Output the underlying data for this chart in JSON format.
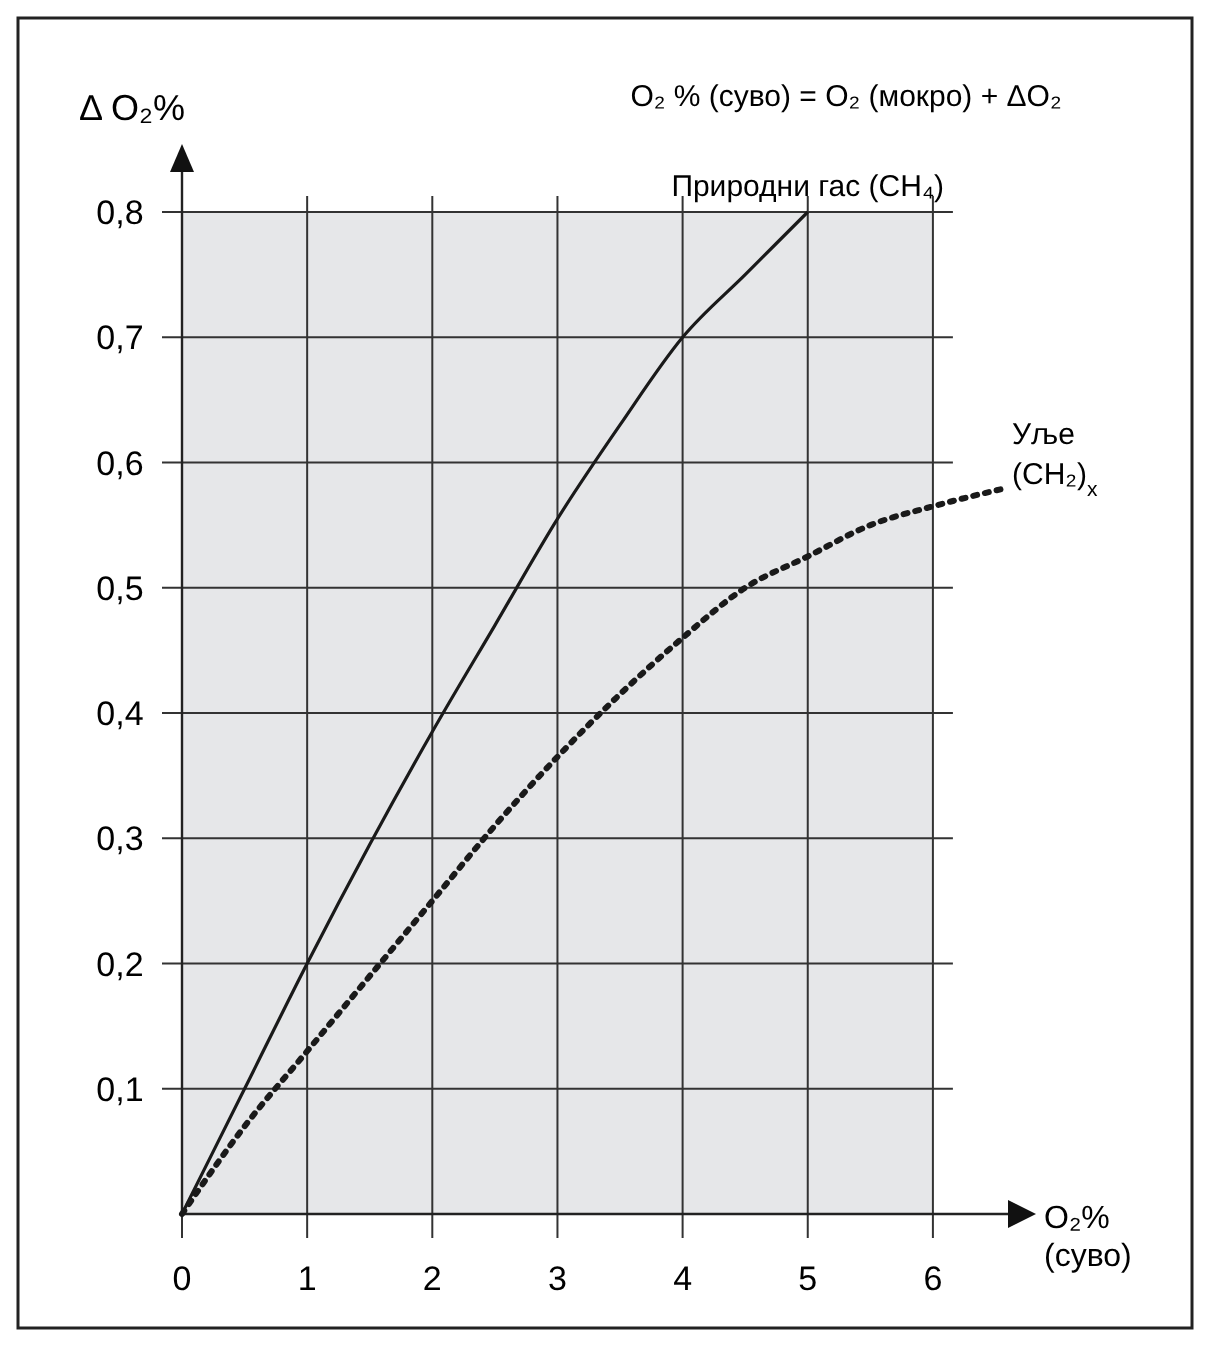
{
  "chart_data": {
    "type": "line",
    "title": "O₂ % (суво) = O₂ (мокро) + ΔO₂",
    "ylabel": "Δ O₂%",
    "xlabel": "O₂%\n(суво)",
    "xlim": [
      0,
      6.6
    ],
    "xticks": [
      0,
      1,
      2,
      3,
      4,
      5,
      6
    ],
    "ylim": [
      0,
      0.8
    ],
    "yticks": [
      {
        "value": 0.1,
        "label": "0,1"
      },
      {
        "value": 0.2,
        "label": "0,2"
      },
      {
        "value": 0.3,
        "label": "0,3"
      },
      {
        "value": 0.4,
        "label": "0,4"
      },
      {
        "value": 0.5,
        "label": "0,5"
      },
      {
        "value": 0.6,
        "label": "0,6"
      },
      {
        "value": 0.7,
        "label": "0,7"
      },
      {
        "value": 0.8,
        "label": "0,8"
      }
    ],
    "grid": true,
    "marker": "none",
    "series": [
      {
        "name": "Природни гас (CH₄)",
        "color": "#1a1a1a",
        "line_style": "solid",
        "x": [
          0,
          0.5,
          1,
          1.5,
          2,
          2.5,
          3,
          3.5,
          4,
          4.5,
          5
        ],
        "values": [
          0,
          0.1,
          0.2,
          0.295,
          0.385,
          0.47,
          0.555,
          0.63,
          0.7,
          0.75,
          0.8
        ]
      },
      {
        "name": "Уље\n(CH₂)$_{x}$",
        "color": "#1a1a1a",
        "line_style": "dotted",
        "x": [
          0,
          0.5,
          1,
          1.5,
          2,
          2.5,
          3,
          3.5,
          4,
          4.5,
          5,
          5.5,
          6,
          6.6
        ],
        "values": [
          0,
          0.07,
          0.13,
          0.19,
          0.25,
          0.31,
          0.365,
          0.415,
          0.46,
          0.5,
          0.525,
          0.55,
          0.565,
          0.58
        ]
      }
    ]
  }
}
